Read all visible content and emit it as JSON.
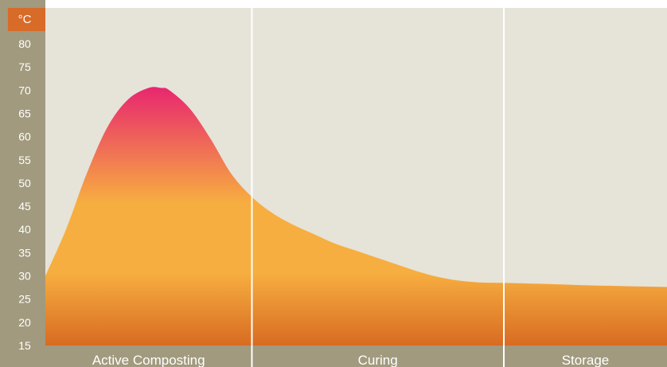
{
  "chart_data": {
    "type": "area",
    "title": "",
    "xlabel": "",
    "ylabel": "",
    "unit_label": "°C",
    "ylim": [
      15,
      83
    ],
    "yticks": [
      80,
      75,
      70,
      65,
      60,
      55,
      50,
      45,
      40,
      35,
      30,
      25,
      20,
      15
    ],
    "phases": [
      {
        "label": "Active Composting",
        "start": 0,
        "end": 100
      },
      {
        "label": "Curing",
        "start": 100,
        "end": 222
      },
      {
        "label": "Storage",
        "start": 222,
        "end": 301
      }
    ],
    "x": [
      0,
      10,
      20,
      30,
      40,
      50,
      56,
      60,
      70,
      80,
      90,
      100,
      110,
      120,
      130,
      140,
      150,
      160,
      170,
      180,
      190,
      200,
      210,
      222,
      240,
      260,
      280,
      301
    ],
    "values": [
      30,
      40,
      52,
      62,
      68,
      70.5,
      70.5,
      70,
      66,
      59.5,
      52,
      47,
      43.5,
      41,
      39,
      37,
      35.5,
      34,
      32.5,
      31,
      29.8,
      29,
      28.6,
      28.5,
      28.3,
      28,
      27.8,
      27.6
    ],
    "colors": {
      "plot_background": "#e6e3d9",
      "axis_background": "#a19a7e",
      "unit_badge": "#d86b28",
      "fill_top": "#e8266f",
      "fill_mid": "#f7ae40",
      "fill_bottom": "#d86b22",
      "divider": "#ffffff"
    }
  }
}
